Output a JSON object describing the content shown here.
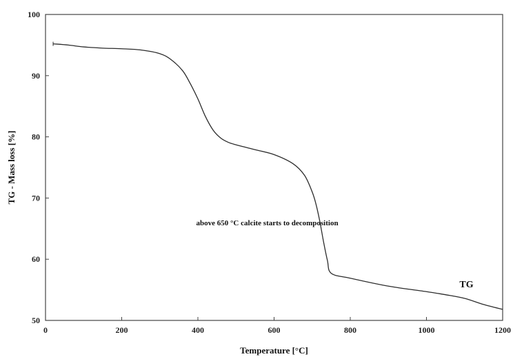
{
  "chart_data": {
    "type": "line",
    "xlabel": "Temperature [°C]",
    "ylabel": "TG - Mass  loss [%]",
    "xlim": [
      0,
      1200
    ],
    "ylim": [
      50,
      100
    ],
    "xticks": [
      0,
      200,
      400,
      600,
      800,
      1000,
      1200
    ],
    "yticks": [
      50,
      60,
      70,
      80,
      90,
      100
    ],
    "grid": false,
    "line_color": "#2b2b2b",
    "series": [
      {
        "name": "TG",
        "x": [
          20,
          60,
          100,
          150,
          200,
          250,
          300,
          330,
          360,
          380,
          400,
          420,
          440,
          460,
          480,
          500,
          550,
          600,
          650,
          680,
          700,
          710,
          720,
          730,
          740,
          750,
          800,
          900,
          1000,
          1050,
          1100,
          1150,
          1200
        ],
        "y": [
          95.2,
          95.0,
          94.7,
          94.5,
          94.4,
          94.2,
          93.6,
          92.6,
          90.8,
          88.7,
          86.2,
          83.3,
          81.1,
          79.8,
          79.1,
          78.7,
          77.9,
          77.1,
          75.6,
          73.7,
          71.0,
          69.0,
          66.2,
          62.8,
          59.8,
          57.7,
          56.9,
          55.6,
          54.7,
          54.2,
          53.6,
          52.6,
          51.8
        ]
      }
    ],
    "annotations": [
      {
        "text": "above 650 °C  calcite starts to decomposition",
        "x": 582,
        "y": 66.0
      }
    ]
  }
}
